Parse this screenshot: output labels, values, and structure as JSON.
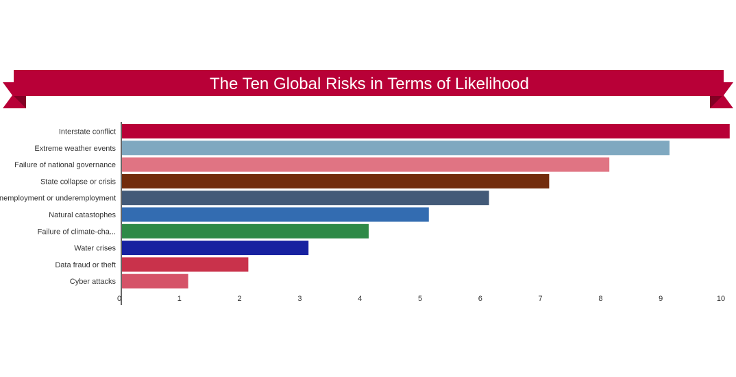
{
  "chart_data": {
    "type": "bar",
    "orientation": "horizontal",
    "title": "The Ten Global Risks in Terms of Likelihood",
    "categories": [
      "Interstate conflict",
      "Extreme weather events",
      "Failure of national governance",
      "State collapse or crisis",
      "Unemployment or underemployment",
      "Natural catastophes",
      "Failure of climate-cha...",
      "Water crises",
      "Data fraud or theft",
      "Cyber attacks"
    ],
    "values": [
      10.1,
      9.1,
      8.1,
      7.1,
      6.1,
      5.1,
      4.1,
      3.1,
      2.1,
      1.1
    ],
    "colors": [
      "#b80037",
      "#7fa8c0",
      "#e07483",
      "#722c0d",
      "#435a78",
      "#336cb1",
      "#2e8a47",
      "#1721a0",
      "#c9324b",
      "#d55368"
    ],
    "xlim": [
      0,
      10
    ],
    "xticks": [
      "0",
      "1",
      "2",
      "3",
      "4",
      "5",
      "6",
      "7",
      "8",
      "9",
      "10"
    ],
    "xlabel": "",
    "ylabel": "",
    "grid": false,
    "legend": "none"
  },
  "theme": {
    "banner_color": "#b80037",
    "banner_fold_color": "#820024",
    "title_color": "#ffffff"
  }
}
